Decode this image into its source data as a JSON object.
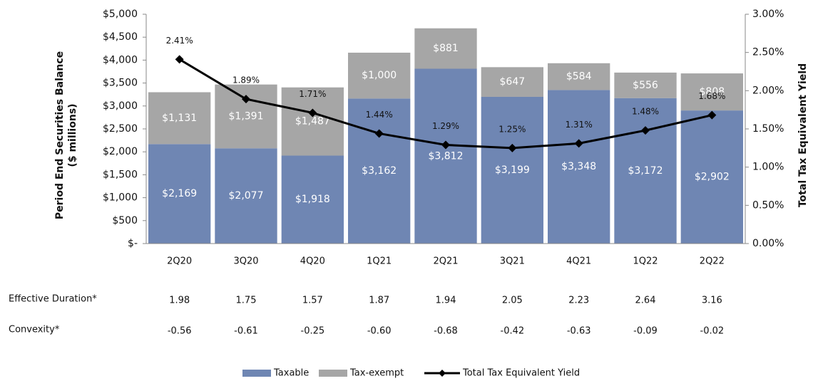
{
  "chart_data": {
    "type": "bar",
    "categories": [
      "2Q20",
      "3Q20",
      "4Q20",
      "1Q21",
      "2Q21",
      "3Q21",
      "4Q21",
      "1Q22",
      "2Q22"
    ],
    "y_label": [
      "Period End Securities Balance",
      "($ millions)"
    ],
    "y2_label": "Total Tax Equivalent Yield",
    "stacked": true,
    "series": [
      {
        "name": "Taxable",
        "color": "#6f86b3",
        "values": [
          2169,
          2077,
          1918,
          3162,
          3812,
          3199,
          3348,
          3172,
          2902
        ],
        "value_labels": [
          "$2,169",
          "$2,077",
          "$1,918",
          "$3,162",
          "$3,812",
          "$3,199",
          "$3,348",
          "$3,172",
          "$2,902"
        ]
      },
      {
        "name": "Tax-exempt",
        "color": "#a6a6a6",
        "values": [
          1131,
          1391,
          1487,
          1000,
          881,
          647,
          584,
          556,
          808
        ],
        "value_labels": [
          "$1,131",
          "$1,391",
          "$1,487",
          "$1,000",
          "$881",
          "$647",
          "$584",
          "$556",
          "$808"
        ]
      },
      {
        "name": "Total Tax Equivalent Yield",
        "color": "#000000",
        "axis": "y2",
        "type": "line",
        "values": [
          2.41,
          1.89,
          1.71,
          1.44,
          1.29,
          1.25,
          1.31,
          1.48,
          1.68
        ],
        "value_labels": [
          "2.41%",
          "1.89%",
          "1.71%",
          "1.44%",
          "1.29%",
          "1.25%",
          "1.31%",
          "1.48%",
          "1.68%"
        ]
      }
    ],
    "ylim": [
      0,
      5000
    ],
    "yticks": [
      {
        "value": 0,
        "label": "$-"
      },
      {
        "value": 500,
        "label": "$500"
      },
      {
        "value": 1000,
        "label": "$1,000"
      },
      {
        "value": 1500,
        "label": "$1,500"
      },
      {
        "value": 2000,
        "label": "$2,000"
      },
      {
        "value": 2500,
        "label": "$2,500"
      },
      {
        "value": 3000,
        "label": "$3,000"
      },
      {
        "value": 3500,
        "label": "$3,500"
      },
      {
        "value": 4000,
        "label": "$4,000"
      },
      {
        "value": 4500,
        "label": "$4,500"
      },
      {
        "value": 5000,
        "label": "$5,000"
      }
    ],
    "y2lim": [
      0,
      3
    ],
    "y2ticks": [
      {
        "value": 0,
        "label": "0.00%"
      },
      {
        "value": 0.5,
        "label": "0.50%"
      },
      {
        "value": 1,
        "label": "1.00%"
      },
      {
        "value": 1.5,
        "label": "1.50%"
      },
      {
        "value": 2,
        "label": "2.00%"
      },
      {
        "value": 2.5,
        "label": "2.50%"
      },
      {
        "value": 3,
        "label": "3.00%"
      }
    ],
    "legend": "bottom",
    "table": [
      {
        "label": "Effective Duration*",
        "values": [
          "1.98",
          "1.75",
          "1.57",
          "1.87",
          "1.94",
          "2.05",
          "2.23",
          "2.64",
          "3.16"
        ]
      },
      {
        "label": "Convexity*",
        "values": [
          "-0.56",
          "-0.61",
          "-0.25",
          "-0.60",
          "-0.68",
          "-0.42",
          "-0.63",
          "-0.09",
          "-0.02"
        ]
      }
    ]
  }
}
